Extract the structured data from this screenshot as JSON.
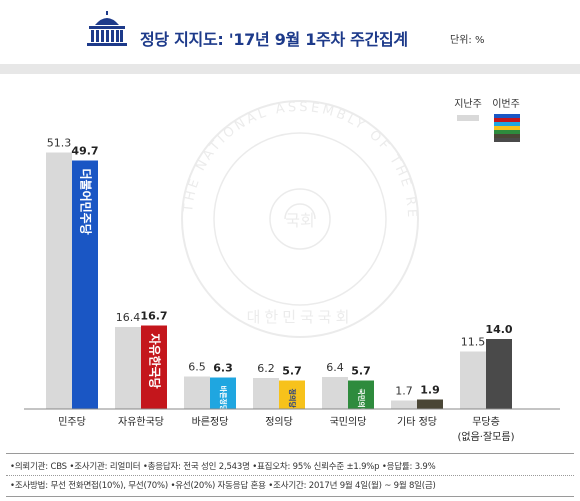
{
  "header": {
    "title": "정당 지지도: '17년 9월 1주차 주간집계",
    "unit": "단위: %"
  },
  "watermark": {
    "center_text": "국회",
    "ring_top": "THE NATIONAL ASSEMBLY OF THE REPUBLIC OF KOREA",
    "ring_bottom": "대한민국국회"
  },
  "colors": {
    "previous_week": "#d9d9d9",
    "minjoo": "#1a56c4",
    "jayu": "#c4161c",
    "bareun": "#1fa6e0",
    "justice": "#f7c21b",
    "peoples": "#2e8b3d",
    "other": "#4a4636",
    "none": "#4a4a4a"
  },
  "chart_data": {
    "type": "bar",
    "categories": [
      "민주당",
      "자유한국당",
      "바른정당",
      "정의당",
      "국민의당",
      "기타 정당",
      "무당층"
    ],
    "category_sublabels": [
      "",
      "",
      "",
      "",
      "",
      "",
      "(없음·잘모름)"
    ],
    "legend": {
      "previous_label": "지난주",
      "current_label": "이번주",
      "current_swatch_colors": [
        "#1a56c4",
        "#c4161c",
        "#1fa6e0",
        "#f7c21b",
        "#2e8b3d",
        "#4a4636",
        "#4a4a4a"
      ],
      "placement": "top-right"
    },
    "series": [
      {
        "name": "지난주",
        "values": [
          51.3,
          16.4,
          6.5,
          6.2,
          6.4,
          1.7,
          11.5
        ]
      },
      {
        "name": "이번주",
        "values": [
          49.7,
          16.7,
          6.3,
          5.7,
          5.7,
          1.9,
          14.0
        ]
      }
    ],
    "value_labels": {
      "previous": [
        "51.3",
        "16.4",
        "6.5",
        "6.2",
        "6.4",
        "1.7",
        "11.5"
      ],
      "current": [
        "49.7",
        "16.7",
        "6.3",
        "5.7",
        "5.7",
        "1.9",
        "14.0"
      ]
    },
    "bar_logos": [
      "더불어민주당",
      "자유한국당",
      "바른정당",
      "정의당",
      "국민의당",
      "",
      ""
    ],
    "ylim": [
      0,
      55
    ],
    "grid": false,
    "title": "",
    "xlabel": "",
    "ylabel": ""
  },
  "footer": {
    "line1": "•의뢰기관: CBS  •조사기관: 리얼미터  •총응답자: 전국 성인 2,543명   •표집오차: 95% 신뢰수준 ±1.9%p   •응답률: 3.9%",
    "line2": "•조사방법: 무선 전화면접(10%), 무선(70%) •유선(20%) 자동응답 혼용   •조사기간: 2017년 9월 4일(월) ~ 9월 8일(금)"
  }
}
